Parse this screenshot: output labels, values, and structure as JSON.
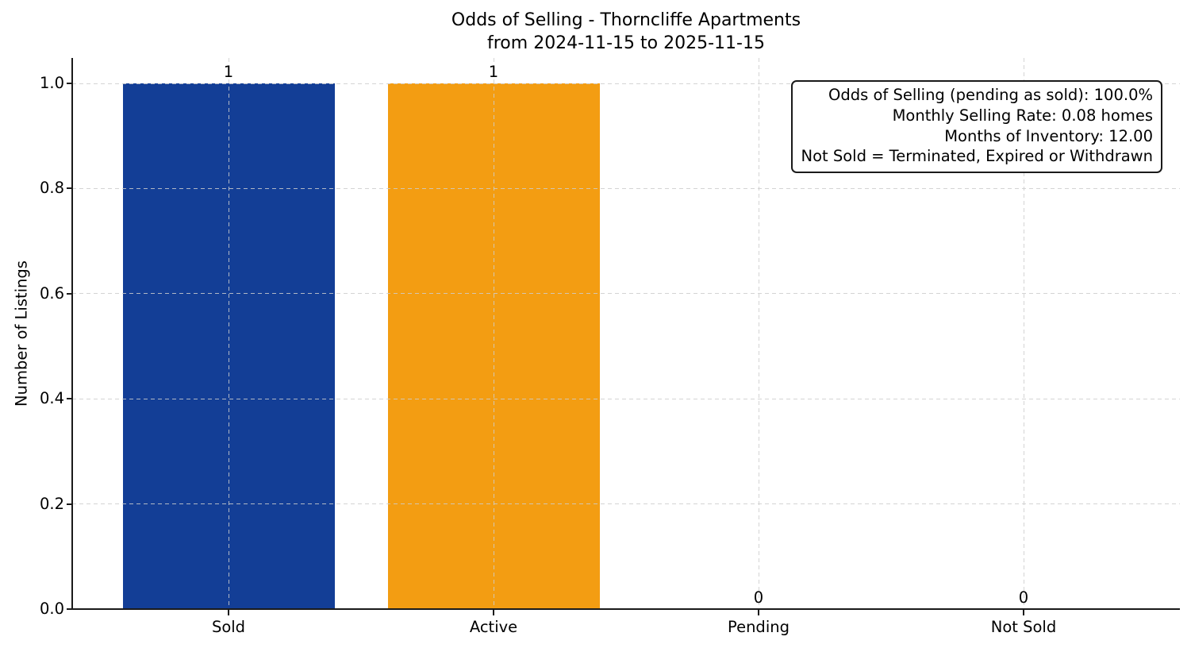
{
  "chart_data": {
    "type": "bar",
    "title": "Odds of Selling - Thorncliffe Apartments",
    "subtitle": "from 2024-11-15 to 2025-11-15",
    "categories": [
      "Sold",
      "Active",
      "Pending",
      "Not Sold"
    ],
    "values": [
      1,
      1,
      0,
      0
    ],
    "value_labels": [
      "1",
      "1",
      "0",
      "0"
    ],
    "bar_colors": [
      "#133e96",
      "#f39d12",
      null,
      null
    ],
    "xlabel": "",
    "ylabel": "Number of Listings",
    "yticks": [
      0,
      0.2,
      0.4,
      0.6,
      0.8,
      1.0
    ],
    "ytick_labels": [
      "0.0",
      "0.2",
      "0.4",
      "0.6",
      "0.8",
      "1.0"
    ],
    "ylim": [
      0,
      1.05
    ],
    "grid": {
      "style": "dashed",
      "color": "#d3d3d3",
      "horizontal": true,
      "vertical": true,
      "above_bars": true
    },
    "legend": null,
    "annotation_box": {
      "position": "top-right",
      "text_align": "right",
      "lines": [
        "Odds of Selling (pending as sold): 100.0%",
        "Monthly Selling Rate: 0.08 homes",
        "Months of Inventory: 12.00",
        "Not Sold = Terminated, Expired or Withdrawn"
      ]
    },
    "colors": {
      "sold_bar": "#133e96",
      "active_bar": "#f39d12",
      "axis": "#1a1a1a",
      "grid": "#d3d3d3",
      "text": "#000000",
      "background": "#ffffff"
    }
  }
}
